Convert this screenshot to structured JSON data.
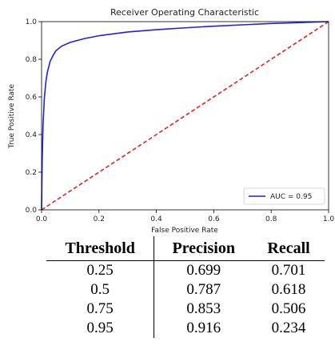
{
  "chart_data": {
    "type": "line",
    "title": "Receiver Operating Characteristic",
    "xlabel": "False Positive Rate",
    "ylabel": "True Positive Rate",
    "xlim": [
      0,
      1
    ],
    "ylim": [
      0,
      1
    ],
    "xticks": [
      "0.0",
      "0.2",
      "0.4",
      "0.6",
      "0.8",
      "1.0"
    ],
    "yticks": [
      "0.0",
      "0.2",
      "0.4",
      "0.6",
      "0.8",
      "1.0"
    ],
    "grid": false,
    "legend_position": "lower-right",
    "series": [
      {
        "name": "AUC = 0.95",
        "color": "#1f1fe6",
        "style": "solid",
        "points": [
          [
            0.0,
            0.0
          ],
          [
            0.002,
            0.25
          ],
          [
            0.005,
            0.45
          ],
          [
            0.01,
            0.6
          ],
          [
            0.015,
            0.68
          ],
          [
            0.02,
            0.73
          ],
          [
            0.03,
            0.79
          ],
          [
            0.04,
            0.82
          ],
          [
            0.05,
            0.845
          ],
          [
            0.07,
            0.87
          ],
          [
            0.1,
            0.89
          ],
          [
            0.15,
            0.91
          ],
          [
            0.2,
            0.925
          ],
          [
            0.3,
            0.945
          ],
          [
            0.4,
            0.957
          ],
          [
            0.5,
            0.967
          ],
          [
            0.6,
            0.976
          ],
          [
            0.7,
            0.983
          ],
          [
            0.8,
            0.99
          ],
          [
            0.9,
            0.995
          ],
          [
            1.0,
            1.0
          ]
        ]
      },
      {
        "color": "#e62020",
        "style": "dashed",
        "points": [
          [
            0,
            0
          ],
          [
            1,
            1
          ]
        ]
      }
    ]
  },
  "table": {
    "headers": [
      "Threshold",
      "Precision",
      "Recall"
    ],
    "rows": [
      [
        "0.25",
        "0.699",
        "0.701"
      ],
      [
        "0.5",
        "0.787",
        "0.618"
      ],
      [
        "0.75",
        "0.853",
        "0.506"
      ],
      [
        "0.95",
        "0.916",
        "0.234"
      ]
    ]
  }
}
